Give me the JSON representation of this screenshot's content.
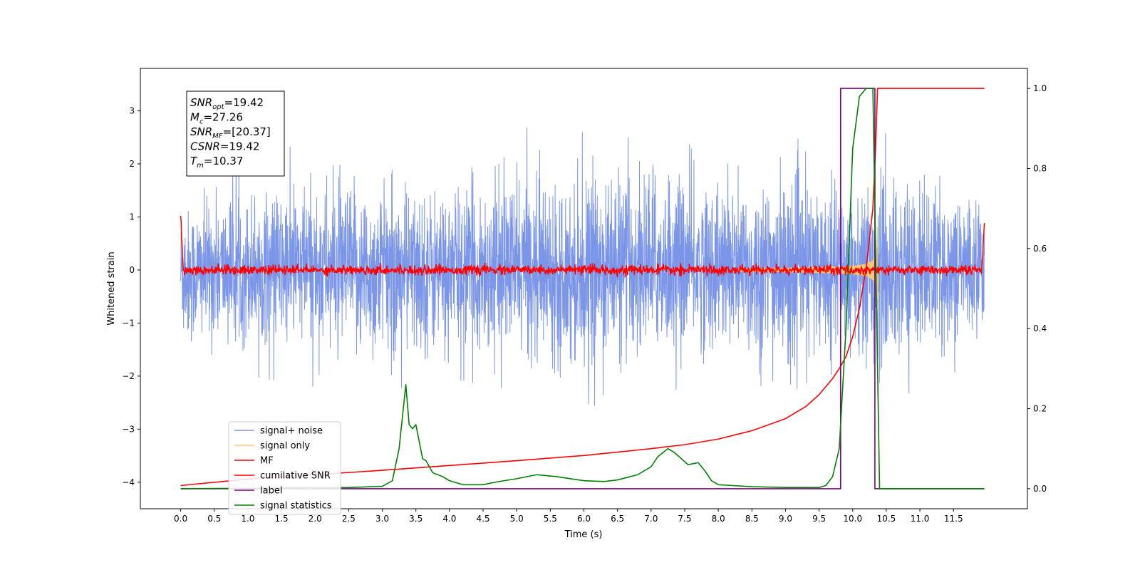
{
  "chart_data": {
    "type": "line",
    "xlabel": "Time (s)",
    "ylabel": "Whitened strain",
    "xlim": [
      -0.6,
      12.6
    ],
    "ylim": [
      -4.5,
      3.8
    ],
    "y2lim": [
      -0.05,
      1.05
    ],
    "x_ticks": [
      0.0,
      0.5,
      1.0,
      1.5,
      2.0,
      2.5,
      3.0,
      3.5,
      4.0,
      4.5,
      5.0,
      5.5,
      6.0,
      6.5,
      7.0,
      7.5,
      8.0,
      8.5,
      9.0,
      9.5,
      10.0,
      10.5,
      11.0,
      11.5
    ],
    "x_tick_labels": [
      "0.0",
      "0.5",
      "1.0",
      "1.5",
      "2.0",
      "2.5",
      "3.0",
      "3.5",
      "4.0",
      "4.5",
      "5.0",
      "5.5",
      "6.0",
      "6.5",
      "7.0",
      "7.5",
      "8.0",
      "8.5",
      "9.0",
      "9.5",
      "10.0",
      "10.5",
      "11.0",
      "11.5"
    ],
    "y_ticks": [
      3,
      2,
      1,
      0,
      -1,
      -2,
      -3,
      -4
    ],
    "y_tick_labels": [
      "3",
      "2",
      "1",
      "0",
      "−1",
      "−2",
      "−3",
      "−4"
    ],
    "y2_ticks": [
      1.0,
      0.8,
      0.6,
      0.4,
      0.2,
      0.0
    ],
    "y2_tick_labels": [
      "1.0",
      "0.8",
      "0.6",
      "0.4",
      "0.2",
      "0.0"
    ],
    "grid": false,
    "legend_position": "lower-left",
    "annotation": {
      "lines": [
        {
          "base": "SNR",
          "sub": "opt",
          "value": "=19.42"
        },
        {
          "base": "M",
          "sub": "c",
          "value": "=27.26"
        },
        {
          "base": "SNR",
          "sub": "MF",
          "value": "=[20.37]"
        },
        {
          "base": "CSNR",
          "sub": "",
          "value": "=19.42"
        },
        {
          "base": "T",
          "sub": "m",
          "value": "=10.37"
        }
      ]
    },
    "series": [
      {
        "name": "signal+ noise",
        "color": "#7b96e8",
        "axis": "left",
        "style": "noise",
        "envelope": [
          [
            0.0,
            1.7,
            -2.2
          ],
          [
            1.0,
            2.2,
            -2.0
          ],
          [
            2.0,
            2.4,
            -2.2
          ],
          [
            3.0,
            2.3,
            -2.6
          ],
          [
            4.0,
            2.2,
            -2.3
          ],
          [
            5.0,
            2.7,
            -2.2
          ],
          [
            6.0,
            2.6,
            -2.6
          ],
          [
            7.0,
            2.9,
            -2.3
          ],
          [
            8.0,
            2.5,
            -2.2
          ],
          [
            9.0,
            2.5,
            -2.9
          ],
          [
            9.8,
            2.4,
            -2.0
          ],
          [
            10.35,
            2.6,
            -3.1
          ],
          [
            11.0,
            2.5,
            -2.2
          ],
          [
            11.96,
            2.0,
            -1.7
          ]
        ]
      },
      {
        "name": "signal only",
        "color": "#f5c877",
        "axis": "left",
        "style": "chirp",
        "t_merge": 10.37,
        "peak_amplitude": 1.2
      },
      {
        "name": "MF",
        "color": "#ff0000",
        "axis": "left",
        "style": "mf",
        "edge_start": 1.0,
        "edge_end": 0.9,
        "noise_amplitude": 0.09
      },
      {
        "name": "cumilative SNR",
        "color": "#ff0000",
        "axis": "right",
        "x": [
          0.0,
          1.0,
          2.0,
          3.0,
          4.0,
          5.0,
          6.0,
          7.0,
          7.5,
          8.0,
          8.5,
          9.0,
          9.3,
          9.5,
          9.7,
          9.8,
          9.9,
          10.0,
          10.1,
          10.2,
          10.3,
          10.34,
          10.37,
          10.4,
          11.0,
          11.96
        ],
        "values": [
          0.008,
          0.024,
          0.035,
          0.046,
          0.058,
          0.07,
          0.083,
          0.1,
          0.11,
          0.124,
          0.145,
          0.175,
          0.205,
          0.235,
          0.275,
          0.3,
          0.33,
          0.38,
          0.45,
          0.55,
          0.7,
          0.85,
          1.0,
          1.0,
          1.0,
          1.0
        ]
      },
      {
        "name": "label",
        "color": "#800080",
        "axis": "right",
        "x": [
          0.0,
          9.82,
          9.82,
          10.33,
          10.33,
          11.96
        ],
        "values": [
          0.0,
          0.0,
          1.0,
          1.0,
          0.0,
          0.0
        ]
      },
      {
        "name": "signal statistics",
        "color": "#008000",
        "axis": "right",
        "x": [
          0.0,
          2.5,
          3.0,
          3.15,
          3.25,
          3.35,
          3.4,
          3.45,
          3.5,
          3.6,
          3.65,
          3.75,
          3.9,
          4.0,
          4.2,
          4.5,
          4.7,
          5.0,
          5.3,
          5.6,
          6.0,
          6.3,
          6.5,
          6.8,
          7.0,
          7.1,
          7.25,
          7.35,
          7.45,
          7.55,
          7.7,
          7.8,
          7.9,
          8.0,
          8.5,
          9.0,
          9.5,
          9.6,
          9.7,
          9.8,
          9.9,
          10.0,
          10.1,
          10.2,
          10.3,
          10.35,
          10.4,
          10.5,
          11.96
        ],
        "values": [
          0.0,
          0.003,
          0.006,
          0.02,
          0.1,
          0.26,
          0.16,
          0.15,
          0.16,
          0.075,
          0.07,
          0.04,
          0.03,
          0.02,
          0.01,
          0.01,
          0.017,
          0.025,
          0.035,
          0.03,
          0.02,
          0.018,
          0.022,
          0.035,
          0.055,
          0.08,
          0.1,
          0.09,
          0.075,
          0.06,
          0.065,
          0.045,
          0.02,
          0.01,
          0.005,
          0.003,
          0.003,
          0.008,
          0.03,
          0.1,
          0.4,
          0.85,
          0.98,
          1.0,
          1.0,
          0.5,
          0.0,
          0.0,
          0.0
        ]
      }
    ]
  }
}
